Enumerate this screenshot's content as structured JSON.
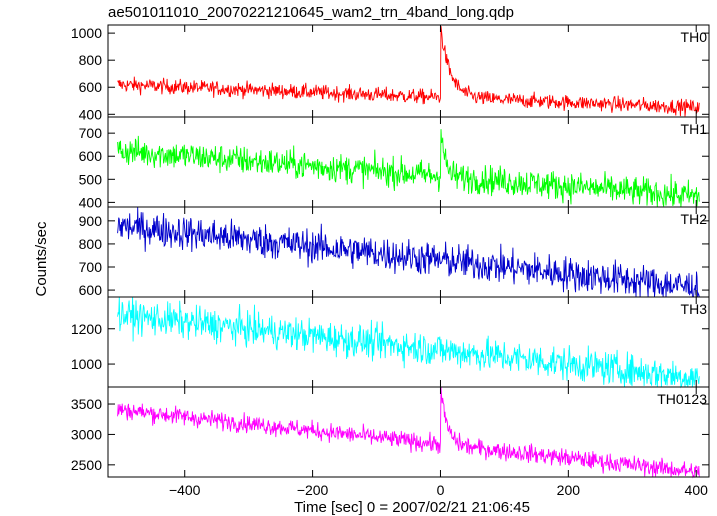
{
  "title": "ae501011010_20070221210645_wam2_trn_4band_long.qdp",
  "chart_data": {
    "type": "line",
    "xlabel": "Time [sec] 0 = 2007/02/21 21:06:45",
    "ylabel": "Counts/sec",
    "xlim": [
      -520,
      420
    ],
    "x_ticks": [
      -400,
      -200,
      0,
      200,
      400
    ],
    "x_tick_labels": [
      "−400",
      "−200",
      "0",
      "200",
      "400"
    ],
    "grid": false,
    "panels": [
      {
        "name": "TH0",
        "color": "#ff0000",
        "ylim": [
          380,
          1060
        ],
        "y_ticks": [
          400,
          600,
          800,
          1000
        ],
        "y_tick_labels": [
          "400",
          "600",
          "800",
          "1000"
        ],
        "start_level": 620,
        "end_level": 450,
        "noise": 28,
        "spike_x": 0,
        "spike_peak": 1050,
        "spike_decay": 15
      },
      {
        "name": "TH1",
        "color": "#00ff00",
        "ylim": [
          380,
          770
        ],
        "y_ticks": [
          400,
          500,
          600,
          700
        ],
        "y_tick_labels": [
          "400",
          "500",
          "600",
          "700"
        ],
        "start_level": 625,
        "end_level": 425,
        "noise": 32,
        "spike_x": 0,
        "spike_peak": 760,
        "spike_decay": 6
      },
      {
        "name": "TH2",
        "color": "#0000cc",
        "ylim": [
          570,
          960
        ],
        "y_ticks": [
          600,
          700,
          800,
          900
        ],
        "y_tick_labels": [
          "600",
          "700",
          "800",
          "900"
        ],
        "start_level": 880,
        "end_level": 610,
        "noise": 38,
        "spike_x": 0,
        "spike_peak": 0,
        "spike_decay": 0
      },
      {
        "name": "TH3",
        "color": "#00ffff",
        "ylim": [
          870,
          1380
        ],
        "y_ticks": [
          1000,
          1200
        ],
        "y_tick_labels": [
          "1000",
          "1200"
        ],
        "start_level": 1280,
        "end_level": 920,
        "noise": 48,
        "spike_x": 0,
        "spike_peak": 0,
        "spike_decay": 0
      },
      {
        "name": "TH0123",
        "color": "#ff00ff",
        "ylim": [
          2300,
          3780
        ],
        "y_ticks": [
          2500,
          3000,
          3500
        ],
        "y_tick_labels": [
          "2500",
          "3000",
          "3500"
        ],
        "start_level": 3410,
        "end_level": 2380,
        "noise": 75,
        "spike_x": 0,
        "spike_peak": 3780,
        "spike_decay": 10
      }
    ]
  }
}
